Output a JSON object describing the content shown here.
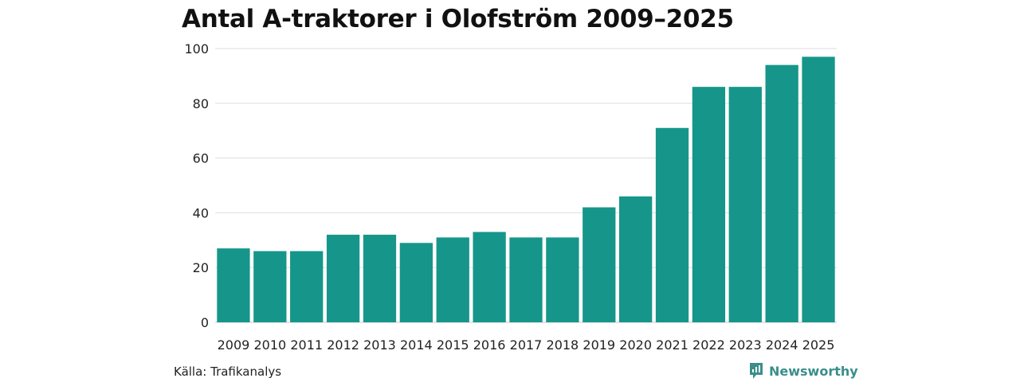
{
  "chart_data": {
    "type": "bar",
    "title": "Antal A-traktorer i Olofström 2009–2025",
    "categories": [
      "2009",
      "2010",
      "2011",
      "2012",
      "2013",
      "2014",
      "2015",
      "2016",
      "2017",
      "2018",
      "2019",
      "2020",
      "2021",
      "2022",
      "2023",
      "2024",
      "2025"
    ],
    "values": [
      27,
      26,
      26,
      32,
      32,
      29,
      31,
      33,
      31,
      31,
      42,
      46,
      71,
      86,
      86,
      94,
      97
    ],
    "yticks": [
      0,
      20,
      40,
      60,
      80,
      100
    ],
    "ylim": [
      0,
      100
    ],
    "xlabel": "",
    "ylabel": "",
    "grid": true,
    "bar_color": "#16968a"
  },
  "footer": {
    "source": "Källa: Trafikanalys",
    "brand": "Newsworthy",
    "brand_icon": "newsworthy-logo-icon",
    "brand_color": "#3a8f8a"
  }
}
